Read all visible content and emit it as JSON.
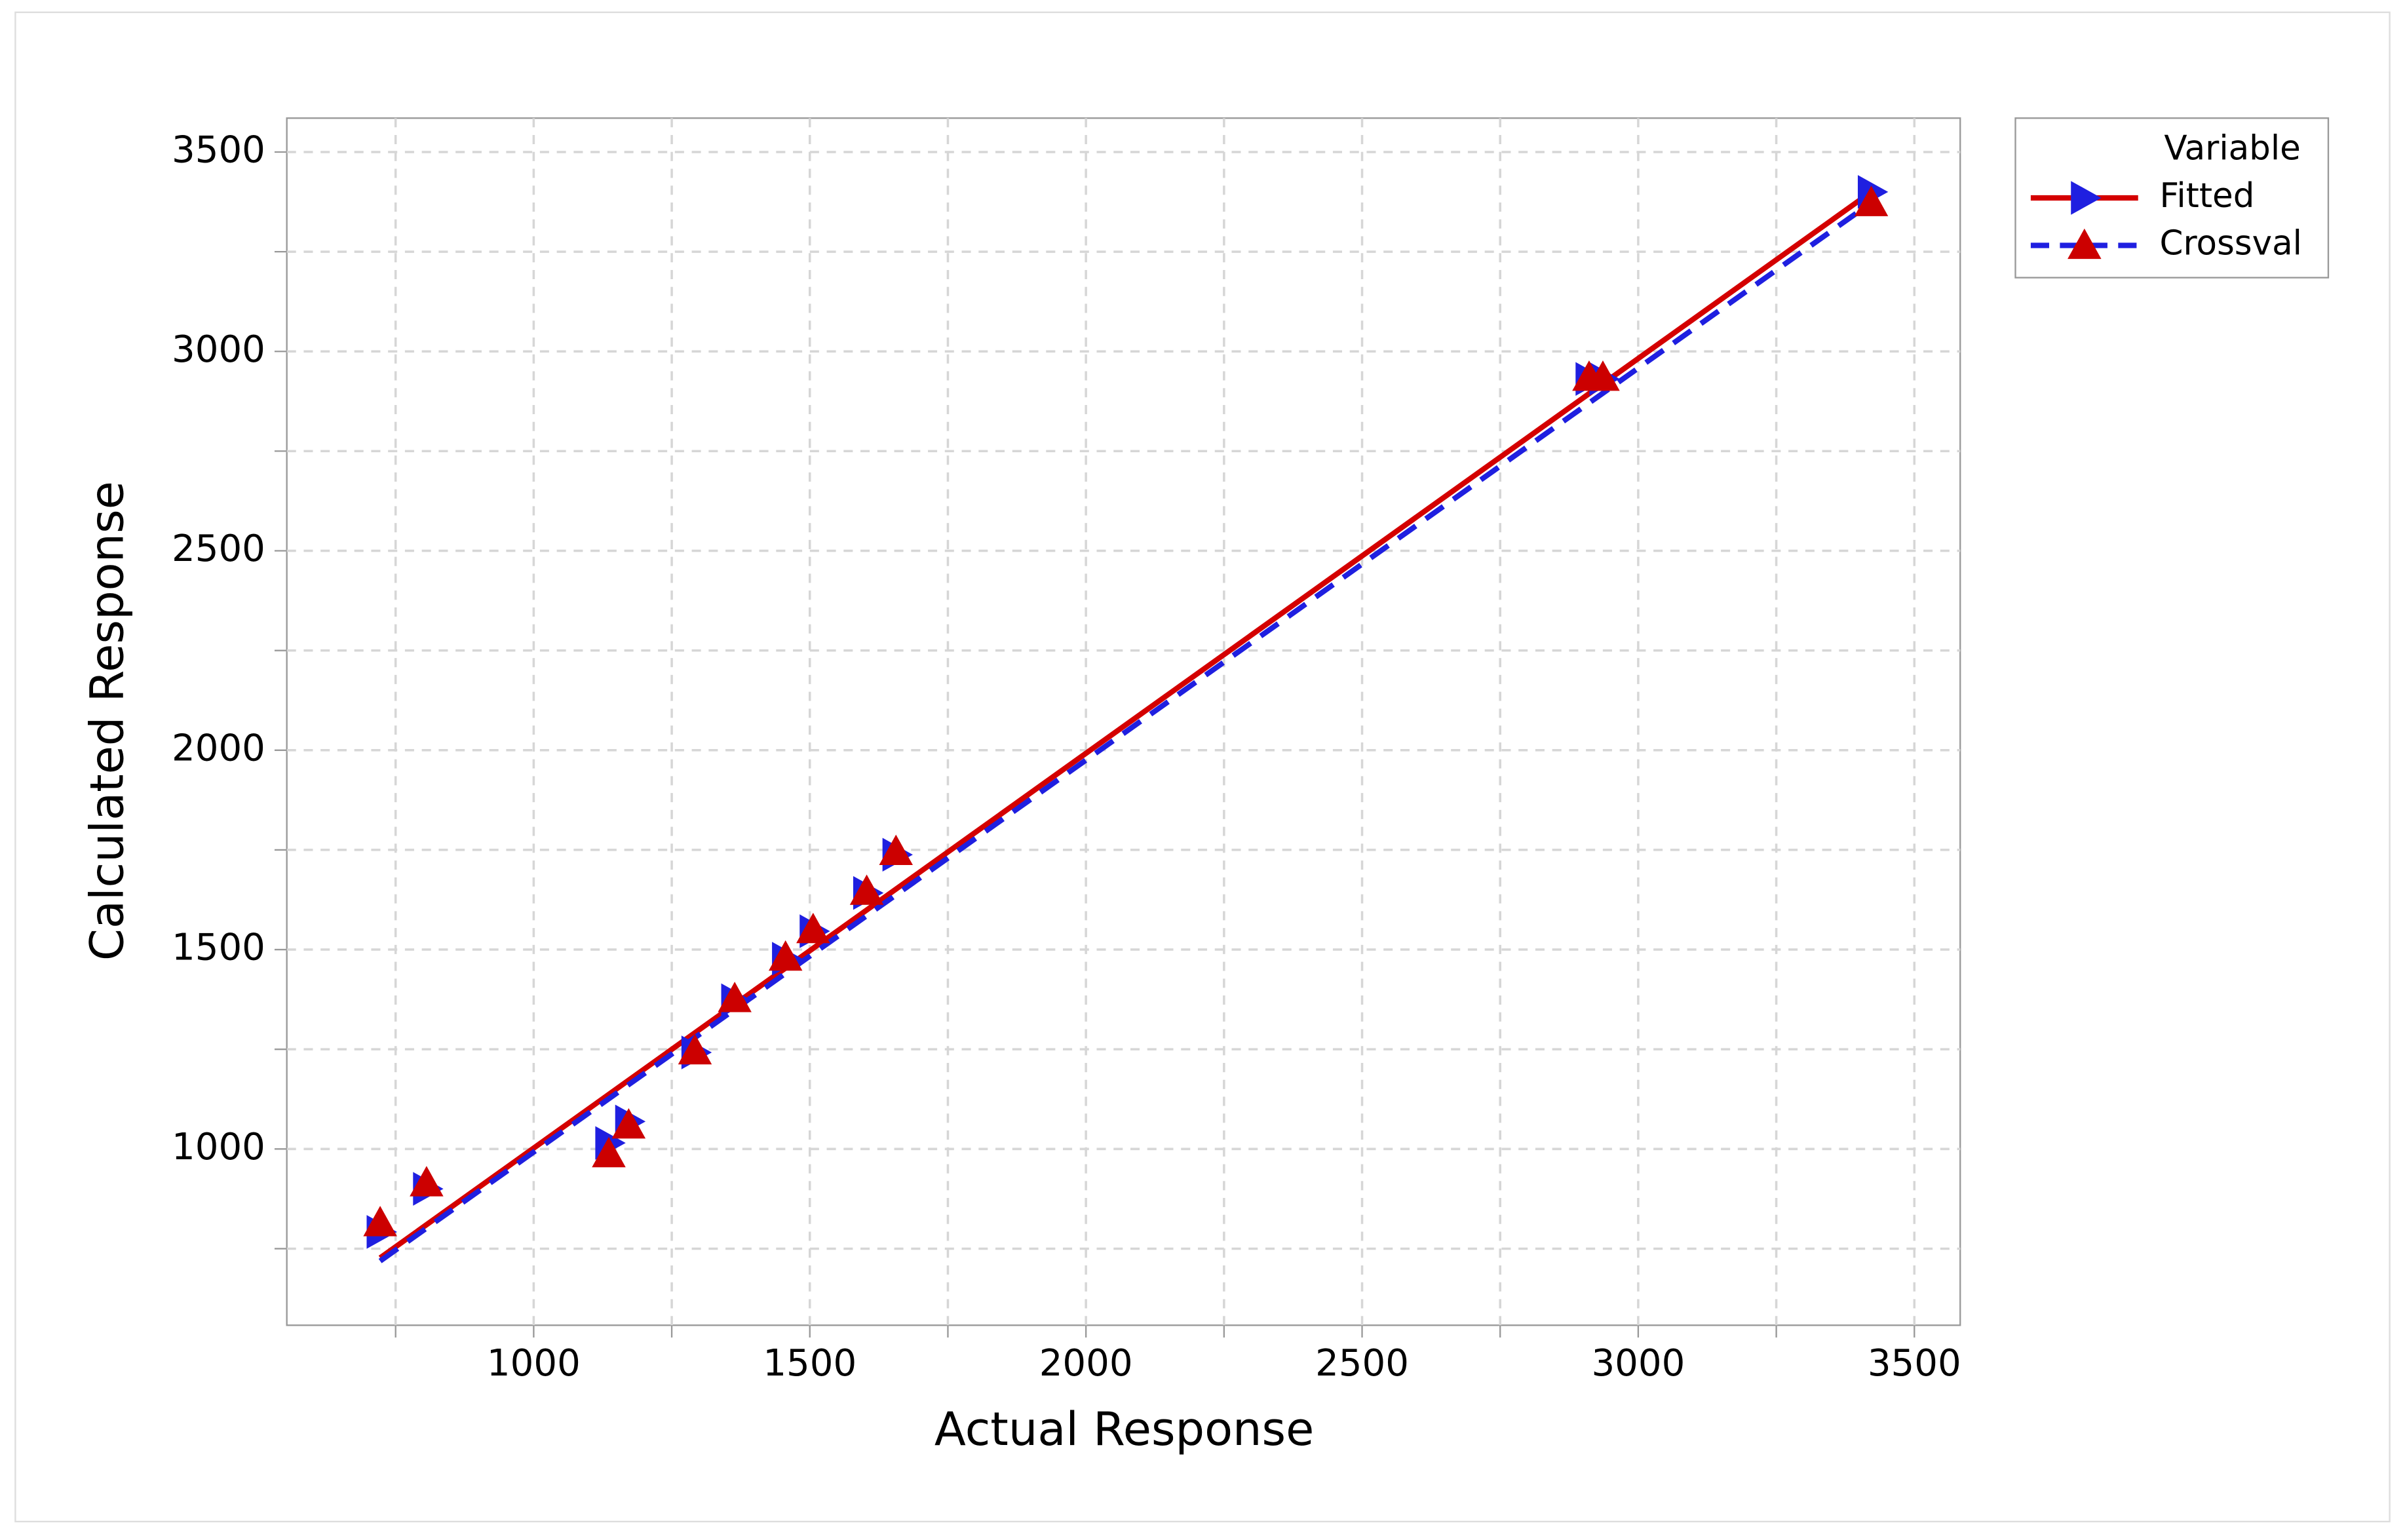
{
  "chart_data": {
    "type": "scatter",
    "x_label": "Actual Response",
    "y_label": "Calculated Response",
    "legend_title": "Variable",
    "legend_position": "right",
    "grid": true,
    "xlim": [
      553,
      3583
    ],
    "ylim": [
      558,
      3585
    ],
    "xticks": [
      1000,
      1500,
      2000,
      2500,
      3000,
      3500
    ],
    "yticks": [
      1000,
      1500,
      2000,
      2500,
      3000,
      3500
    ],
    "minor_xticks": [
      750,
      1250,
      1750,
      2250,
      2750,
      3250
    ],
    "minor_yticks": [
      750,
      1250,
      1750,
      2250,
      2750,
      3250
    ],
    "x": [
      722,
      806,
      1136,
      1172,
      1292,
      1364,
      1456,
      1506,
      1603,
      1656,
      2911,
      2936,
      3422
    ],
    "series": [
      {
        "name": "Fitted",
        "marker": "right-triangle",
        "color": "#1f1fe0",
        "line_color": "#d40000",
        "line_style": "solid",
        "values": [
          792,
          900,
          1015,
          1069,
          1242,
          1373,
          1477,
          1546,
          1642,
          1738,
          2931,
          2931,
          3400
        ],
        "fit_x": [
          722,
          3422
        ],
        "fit_y": [
          727,
          3400
        ]
      },
      {
        "name": "Crossval",
        "marker": "up-triangle",
        "color": "#cc0000",
        "line_color": "#1f1fe0",
        "line_style": "dashed",
        "values": [
          815,
          915,
          988,
          1060,
          1246,
          1377,
          1481,
          1550,
          1646,
          1746,
          2935,
          2935,
          3373
        ],
        "fit_x": [
          722,
          3422
        ],
        "fit_y": [
          719,
          3373
        ]
      }
    ]
  }
}
